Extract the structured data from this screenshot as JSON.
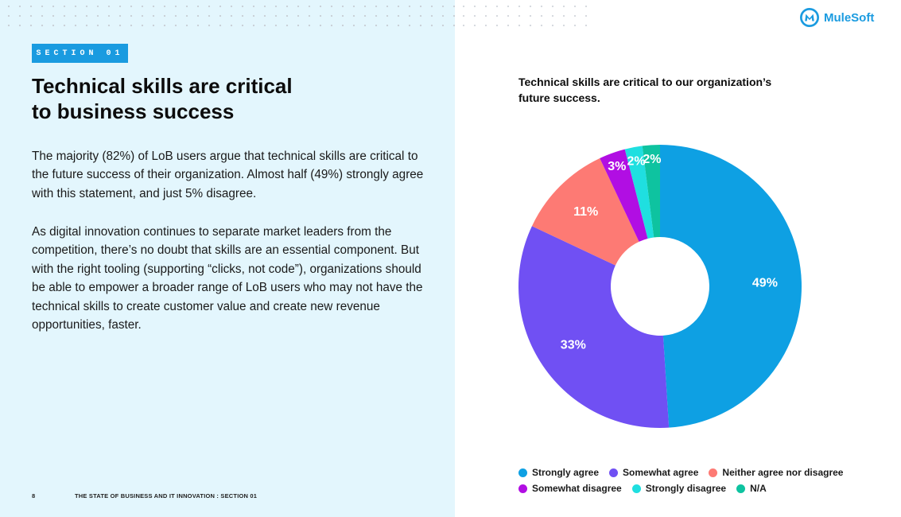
{
  "brand": {
    "name": "MuleSoft",
    "color": "#1a9be0",
    "icon": "mulesoft-logo-icon"
  },
  "section_label": "SECTION 01",
  "title_lines": [
    "Technical skills are critical",
    "to business success"
  ],
  "paragraphs": [
    "The majority (82%) of LoB users argue that technical skills are critical to the future success of their organization. Almost half (49%) strongly agree with this statement, and just 5% disagree.",
    "As digital innovation continues to separate market leaders from the competition, there’s no doubt that skills are an essential component. But with the right tooling (supporting “clicks, not code”), organizations should be able to empower a broader range of LoB users who may not have the technical skills to create customer value and create new revenue opportunities, faster."
  ],
  "footer": {
    "page_number": "8",
    "text": "THE STATE OF BUSINESS AND IT INNOVATION : SECTION 01"
  },
  "colors": {
    "left_panel_bg": "#e3f6fd",
    "badge_bg": "#1a9be0"
  },
  "chart_data": {
    "type": "pie",
    "donut": true,
    "title": "Technical skills are critical to our organization’s future success.",
    "categories": [
      "Strongly agree",
      "Somewhat agree",
      "Neither agree nor disagree",
      "Somewhat disagree",
      "Strongly disagree",
      "N/A"
    ],
    "values": [
      49,
      33,
      11,
      3,
      2,
      2
    ],
    "labels": [
      "49%",
      "33%",
      "11%",
      "3%",
      "2%",
      "2%"
    ],
    "colors": [
      "#0ea0e3",
      "#7050f3",
      "#fd7a74",
      "#b10ee3",
      "#1fdfe0",
      "#0ec3a0"
    ],
    "start_angle": "12 o'clock",
    "direction": "clockwise",
    "legend_position": "bottom"
  }
}
